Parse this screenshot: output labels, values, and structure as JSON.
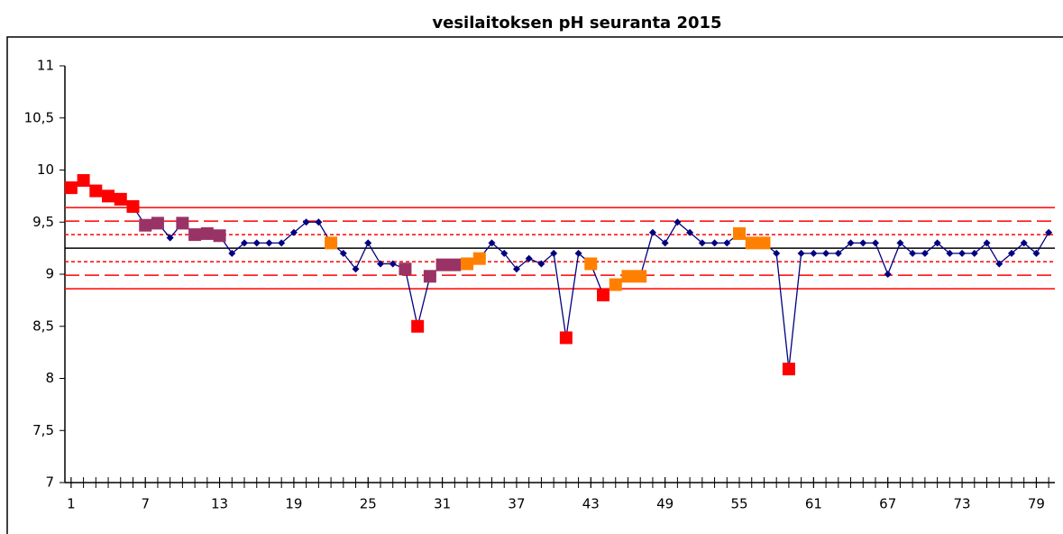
{
  "chart_data": {
    "type": "line",
    "title": "vesilaitoksen pH seuranta 2015",
    "x": [
      1,
      2,
      3,
      4,
      5,
      6,
      7,
      8,
      9,
      10,
      11,
      12,
      13,
      14,
      15,
      16,
      17,
      18,
      19,
      20,
      21,
      22,
      23,
      24,
      25,
      26,
      27,
      28,
      29,
      30,
      31,
      32,
      33,
      34,
      35,
      36,
      37,
      38,
      39,
      40,
      41,
      42,
      43,
      44,
      45,
      46,
      47,
      48,
      49,
      50,
      51,
      52,
      53,
      54,
      55,
      56,
      57,
      58,
      59,
      60,
      61,
      62,
      63,
      64,
      65,
      66,
      67,
      68,
      69,
      70,
      71,
      72,
      73,
      74,
      75,
      76,
      77,
      78,
      79,
      80
    ],
    "values": [
      9.83,
      9.9,
      9.8,
      9.75,
      9.72,
      9.65,
      9.47,
      9.49,
      9.35,
      9.49,
      9.38,
      9.39,
      9.37,
      9.2,
      9.3,
      9.3,
      9.3,
      9.3,
      9.4,
      9.5,
      9.5,
      9.3,
      9.2,
      9.05,
      9.3,
      9.1,
      9.1,
      9.05,
      8.5,
      8.98,
      9.09,
      9.09,
      9.1,
      9.15,
      9.3,
      9.2,
      9.05,
      9.15,
      9.1,
      9.2,
      8.39,
      9.2,
      9.1,
      8.8,
      8.9,
      8.98,
      8.98,
      9.4,
      9.3,
      9.5,
      9.4,
      9.3,
      9.3,
      9.3,
      9.39,
      9.3,
      9.3,
      9.2,
      8.09,
      9.2,
      9.2,
      9.2,
      9.2,
      9.3,
      9.3,
      9.3,
      9.0,
      9.3,
      9.2,
      9.2,
      9.3,
      9.2,
      9.2,
      9.2,
      9.3,
      9.1,
      9.2,
      9.3,
      9.2,
      9.4
    ],
    "color": "#000080",
    "marker_colors": [
      "#ff0000",
      "#ff0000",
      "#ff0000",
      "#ff0000",
      "#ff0000",
      "#ff0000",
      "#993366",
      "#993366",
      null,
      "#993366",
      "#993366",
      "#993366",
      "#993366",
      null,
      null,
      null,
      null,
      null,
      null,
      null,
      null,
      "#ff8000",
      null,
      null,
      null,
      null,
      null,
      "#993366",
      "#ff0000",
      "#993366",
      "#993366",
      "#993366",
      "#ff8000",
      "#ff8000",
      null,
      null,
      null,
      null,
      null,
      null,
      "#ff0000",
      null,
      "#ff8000",
      "#ff0000",
      "#ff8000",
      "#ff8000",
      "#ff8000",
      null,
      null,
      null,
      null,
      null,
      null,
      null,
      "#ff8000",
      "#ff8000",
      "#ff8000",
      null,
      "#ff0000",
      null,
      null,
      null,
      null,
      null,
      null,
      null,
      null,
      null,
      null,
      null,
      null,
      null,
      null,
      null,
      null,
      null,
      null,
      null,
      null,
      null
    ],
    "reference_lines": [
      {
        "value": 9.25,
        "color": "#000000",
        "style": "solid"
      },
      {
        "value": 9.38,
        "color": "#ff0000",
        "style": "dotted"
      },
      {
        "value": 9.12,
        "color": "#ff0000",
        "style": "dotted"
      },
      {
        "value": 9.51,
        "color": "#ff0000",
        "style": "dashed"
      },
      {
        "value": 8.99,
        "color": "#ff0000",
        "style": "dashed"
      },
      {
        "value": 9.64,
        "color": "#ff0000",
        "style": "solid"
      },
      {
        "value": 8.86,
        "color": "#ff0000",
        "style": "solid"
      }
    ],
    "xlim": [
      0.5,
      80.5
    ],
    "xticks": [
      1,
      7,
      13,
      19,
      25,
      31,
      37,
      43,
      49,
      55,
      61,
      67,
      73,
      79
    ],
    "ylim": [
      7,
      11
    ],
    "yticks": [
      7,
      {
        "value": 7.5,
        "label": "7,5"
      },
      8,
      {
        "value": 8.5,
        "label": "8,5"
      },
      9,
      {
        "value": 9.5,
        "label": "9,5"
      },
      10,
      {
        "value": 10.5,
        "label": "10,5"
      },
      11
    ]
  }
}
